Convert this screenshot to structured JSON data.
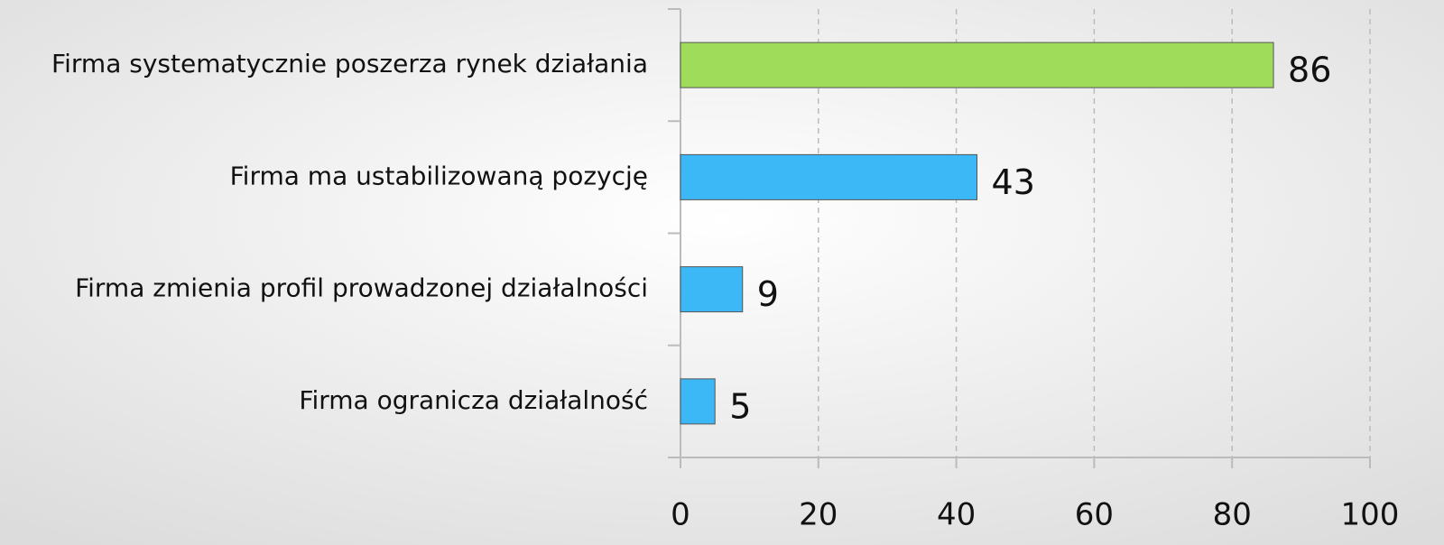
{
  "chart_data": {
    "type": "hbar",
    "categories": [
      "Firma systematycznie poszerza rynek działania",
      "Firma ma ustabilizowaną pozycję",
      "Firma zmienia profil prowadzonej działalności",
      "Firma ogranicza działalność"
    ],
    "values": [
      86,
      43,
      9,
      5
    ],
    "colors": [
      "#9edc5a",
      "#3cb8f6",
      "#3cb8f6",
      "#3cb8f6"
    ],
    "xlim": [
      0,
      100
    ],
    "xticks": [
      0,
      20,
      40,
      60,
      80,
      100
    ],
    "grid": true
  }
}
